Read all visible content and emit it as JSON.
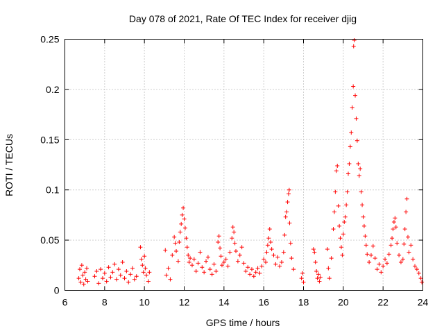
{
  "chart_data": {
    "type": "scatter",
    "title": "Day 078 of 2021, Rate Of TEC Index for receiver djig",
    "xlabel": "GPS time / hours",
    "ylabel": "ROTI / TECUs",
    "xlim": [
      6,
      24
    ],
    "ylim": [
      0,
      0.25
    ],
    "x_ticks": [
      "6",
      "8",
      "10",
      "12",
      "14",
      "16",
      "18",
      "20",
      "22",
      "24"
    ],
    "y_ticks": [
      "0",
      "0.05",
      "0.1",
      "0.15",
      "0.2",
      "0.25"
    ],
    "grid": true,
    "marker": "+",
    "marker_color": "#ff0000",
    "series": [
      {
        "name": "ROTI",
        "points": [
          [
            6.7,
            0.012
          ],
          [
            6.75,
            0.021
          ],
          [
            6.8,
            0.008
          ],
          [
            6.85,
            0.025
          ],
          [
            6.9,
            0.015
          ],
          [
            6.95,
            0.006
          ],
          [
            7.0,
            0.018
          ],
          [
            7.05,
            0.011
          ],
          [
            7.1,
            0.022
          ],
          [
            7.15,
            0.009
          ],
          [
            7.5,
            0.014
          ],
          [
            7.6,
            0.019
          ],
          [
            7.7,
            0.007
          ],
          [
            7.8,
            0.021
          ],
          [
            7.9,
            0.012
          ],
          [
            8.0,
            0.017
          ],
          [
            8.1,
            0.009
          ],
          [
            8.2,
            0.023
          ],
          [
            8.3,
            0.013
          ],
          [
            8.4,
            0.018
          ],
          [
            8.5,
            0.026
          ],
          [
            8.6,
            0.011
          ],
          [
            8.7,
            0.021
          ],
          [
            8.8,
            0.015
          ],
          [
            8.9,
            0.028
          ],
          [
            9.0,
            0.012
          ],
          [
            9.1,
            0.019
          ],
          [
            9.2,
            0.008
          ],
          [
            9.3,
            0.016
          ],
          [
            9.4,
            0.022
          ],
          [
            9.5,
            0.011
          ],
          [
            9.6,
            0.014
          ],
          [
            9.8,
            0.043
          ],
          [
            9.85,
            0.031
          ],
          [
            9.9,
            0.025
          ],
          [
            9.95,
            0.018
          ],
          [
            10.0,
            0.034
          ],
          [
            10.05,
            0.022
          ],
          [
            10.1,
            0.015
          ],
          [
            10.2,
            0.009
          ],
          [
            10.25,
            0.018
          ],
          [
            11.05,
            0.04
          ],
          [
            11.1,
            0.015
          ],
          [
            11.2,
            0.022
          ],
          [
            11.3,
            0.011
          ],
          [
            11.4,
            0.035
          ],
          [
            11.5,
            0.053
          ],
          [
            11.55,
            0.047
          ],
          [
            11.6,
            0.039
          ],
          [
            11.7,
            0.029
          ],
          [
            11.75,
            0.048
          ],
          [
            11.8,
            0.058
          ],
          [
            11.85,
            0.066
          ],
          [
            11.9,
            0.075
          ],
          [
            11.95,
            0.082
          ],
          [
            12.0,
            0.071
          ],
          [
            12.05,
            0.062
          ],
          [
            12.1,
            0.052
          ],
          [
            12.15,
            0.043
          ],
          [
            12.2,
            0.035
          ],
          [
            12.25,
            0.028
          ],
          [
            12.3,
            0.032
          ],
          [
            12.4,
            0.025
          ],
          [
            12.5,
            0.031
          ],
          [
            12.6,
            0.019
          ],
          [
            12.7,
            0.027
          ],
          [
            12.8,
            0.038
          ],
          [
            12.9,
            0.023
          ],
          [
            13.0,
            0.018
          ],
          [
            13.1,
            0.029
          ],
          [
            13.2,
            0.033
          ],
          [
            13.3,
            0.021
          ],
          [
            13.4,
            0.016
          ],
          [
            13.5,
            0.026
          ],
          [
            13.6,
            0.019
          ],
          [
            13.7,
            0.048
          ],
          [
            13.75,
            0.054
          ],
          [
            13.8,
            0.042
          ],
          [
            13.85,
            0.034
          ],
          [
            13.9,
            0.025
          ],
          [
            14.0,
            0.028
          ],
          [
            14.1,
            0.031
          ],
          [
            14.2,
            0.024
          ],
          [
            14.3,
            0.038
          ],
          [
            14.4,
            0.052
          ],
          [
            14.45,
            0.063
          ],
          [
            14.5,
            0.058
          ],
          [
            14.55,
            0.047
          ],
          [
            14.6,
            0.039
          ],
          [
            14.7,
            0.029
          ],
          [
            14.8,
            0.035
          ],
          [
            14.9,
            0.043
          ],
          [
            15.0,
            0.027
          ],
          [
            15.1,
            0.019
          ],
          [
            15.2,
            0.023
          ],
          [
            15.3,
            0.016
          ],
          [
            15.4,
            0.021
          ],
          [
            15.5,
            0.014
          ],
          [
            15.6,
            0.018
          ],
          [
            15.7,
            0.022
          ],
          [
            15.8,
            0.017
          ],
          [
            15.9,
            0.024
          ],
          [
            16.0,
            0.031
          ],
          [
            16.1,
            0.028
          ],
          [
            16.15,
            0.038
          ],
          [
            16.2,
            0.045
          ],
          [
            16.25,
            0.052
          ],
          [
            16.3,
            0.061
          ],
          [
            16.35,
            0.048
          ],
          [
            16.4,
            0.041
          ],
          [
            16.5,
            0.035
          ],
          [
            16.6,
            0.026
          ],
          [
            16.7,
            0.033
          ],
          [
            16.8,
            0.024
          ],
          [
            16.9,
            0.028
          ],
          [
            17.0,
            0.038
          ],
          [
            17.05,
            0.055
          ],
          [
            17.1,
            0.073
          ],
          [
            17.15,
            0.078
          ],
          [
            17.2,
            0.088
          ],
          [
            17.25,
            0.096
          ],
          [
            17.28,
            0.1
          ],
          [
            17.3,
            0.067
          ],
          [
            17.35,
            0.047
          ],
          [
            17.4,
            0.032
          ],
          [
            17.5,
            0.021
          ],
          [
            17.9,
            0.012
          ],
          [
            17.95,
            0.017
          ],
          [
            18.0,
            0.008
          ],
          [
            18.5,
            0.041
          ],
          [
            18.55,
            0.038
          ],
          [
            18.6,
            0.028
          ],
          [
            18.65,
            0.019
          ],
          [
            18.7,
            0.012
          ],
          [
            18.75,
            0.016
          ],
          [
            18.8,
            0.009
          ],
          [
            18.85,
            0.013
          ],
          [
            19.2,
            0.041
          ],
          [
            19.25,
            0.022
          ],
          [
            19.3,
            0.012
          ],
          [
            19.4,
            0.032
          ],
          [
            19.5,
            0.061
          ],
          [
            19.55,
            0.078
          ],
          [
            19.6,
            0.098
          ],
          [
            19.65,
            0.119
          ],
          [
            19.7,
            0.124
          ],
          [
            19.75,
            0.084
          ],
          [
            19.8,
            0.064
          ],
          [
            19.85,
            0.052
          ],
          [
            19.9,
            0.043
          ],
          [
            19.95,
            0.035
          ],
          [
            20.0,
            0.056
          ],
          [
            20.05,
            0.068
          ],
          [
            20.1,
            0.073
          ],
          [
            20.15,
            0.085
          ],
          [
            20.2,
            0.098
          ],
          [
            20.25,
            0.116
          ],
          [
            20.3,
            0.126
          ],
          [
            20.35,
            0.143
          ],
          [
            20.4,
            0.157
          ],
          [
            20.45,
            0.182
          ],
          [
            20.5,
            0.203
          ],
          [
            20.52,
            0.243
          ],
          [
            20.55,
            0.249
          ],
          [
            20.6,
            0.194
          ],
          [
            20.65,
            0.171
          ],
          [
            20.7,
            0.149
          ],
          [
            20.75,
            0.126
          ],
          [
            20.8,
            0.114
          ],
          [
            20.85,
            0.121
          ],
          [
            20.9,
            0.098
          ],
          [
            20.95,
            0.085
          ],
          [
            21.0,
            0.073
          ],
          [
            21.05,
            0.064
          ],
          [
            21.1,
            0.054
          ],
          [
            21.15,
            0.045
          ],
          [
            21.2,
            0.036
          ],
          [
            21.3,
            0.028
          ],
          [
            21.4,
            0.035
          ],
          [
            21.5,
            0.044
          ],
          [
            21.6,
            0.032
          ],
          [
            21.7,
            0.021
          ],
          [
            21.8,
            0.026
          ],
          [
            21.9,
            0.018
          ],
          [
            22.0,
            0.024
          ],
          [
            22.1,
            0.031
          ],
          [
            22.2,
            0.027
          ],
          [
            22.3,
            0.036
          ],
          [
            22.4,
            0.045
          ],
          [
            22.45,
            0.052
          ],
          [
            22.5,
            0.061
          ],
          [
            22.55,
            0.068
          ],
          [
            22.6,
            0.072
          ],
          [
            22.65,
            0.063
          ],
          [
            22.7,
            0.047
          ],
          [
            22.8,
            0.035
          ],
          [
            22.9,
            0.028
          ],
          [
            23.0,
            0.031
          ],
          [
            23.05,
            0.046
          ],
          [
            23.1,
            0.061
          ],
          [
            23.15,
            0.078
          ],
          [
            23.2,
            0.091
          ],
          [
            23.25,
            0.053
          ],
          [
            23.3,
            0.038
          ],
          [
            23.4,
            0.045
          ],
          [
            23.5,
            0.031
          ],
          [
            23.6,
            0.024
          ],
          [
            23.7,
            0.021
          ],
          [
            23.8,
            0.017
          ],
          [
            23.9,
            0.012
          ],
          [
            23.95,
            0.008
          ]
        ]
      }
    ]
  }
}
